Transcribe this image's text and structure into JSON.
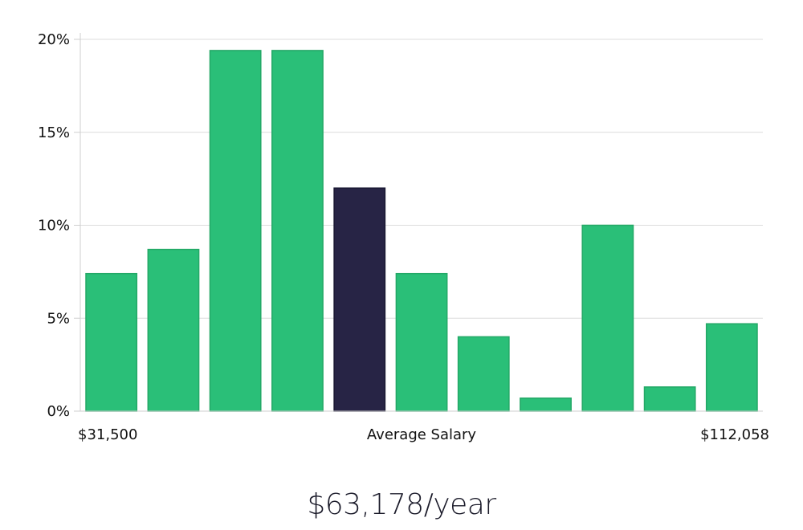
{
  "chart_data": {
    "type": "bar",
    "values": [
      7.4,
      8.7,
      19.4,
      19.4,
      12.0,
      7.4,
      4.0,
      0.7,
      10.0,
      1.3,
      4.7
    ],
    "highlight_index": 4,
    "ylim": [
      0,
      20
    ],
    "yticks": [
      "0%",
      "5%",
      "10%",
      "15%",
      "20%"
    ],
    "ytick_values": [
      0,
      5,
      10,
      15,
      20
    ],
    "x_min_label": "$31,500",
    "x_center_label": "Average Salary",
    "x_max_label": "$112,058",
    "grid": true,
    "colors": {
      "bar": "#2abf78",
      "bar_stroke": "#23a866",
      "highlight": "#272445"
    }
  },
  "summary": {
    "average_salary": "$63,178/year"
  }
}
